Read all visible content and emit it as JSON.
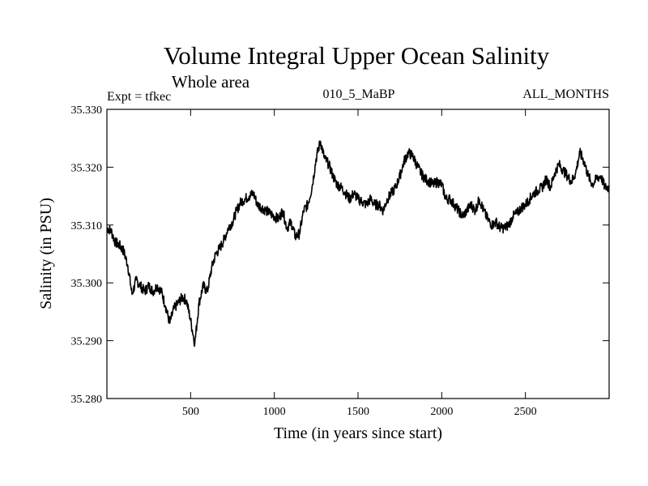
{
  "chart_data": {
    "type": "line",
    "title": "Volume Integral Upper Ocean Salinity",
    "subtitle": "Whole area",
    "header_left": "Expt = tfkec",
    "header_center": "010_5_MaBP",
    "header_right": "ALL_MONTHS",
    "xlabel": "Time (in years since start)",
    "ylabel": "Salinity (in PSU)",
    "xlim": [
      0,
      3000
    ],
    "ylim": [
      35.28,
      35.33
    ],
    "x_ticks": [
      500,
      1000,
      1500,
      2000,
      2500
    ],
    "x_tick_labels": [
      "500",
      "1000",
      "1500",
      "2000",
      "2500"
    ],
    "y_ticks": [
      35.28,
      35.29,
      35.3,
      35.31,
      35.32,
      35.33
    ],
    "y_tick_labels": [
      "35.280",
      "35.290",
      "35.300",
      "35.310",
      "35.320",
      "35.330"
    ],
    "grid": false,
    "line_color": "#000000",
    "series": [
      {
        "x": [
          0,
          25,
          50,
          75,
          100,
          125,
          150,
          175,
          200,
          225,
          250,
          275,
          300,
          325,
          350,
          375,
          400,
          425,
          450,
          475,
          500,
          525,
          550,
          575,
          600,
          625,
          650,
          675,
          700,
          725,
          750,
          775,
          800,
          825,
          850,
          875,
          900,
          925,
          950,
          975,
          1000,
          1025,
          1050,
          1075,
          1100,
          1125,
          1150,
          1175,
          1200,
          1225,
          1250,
          1275,
          1300,
          1325,
          1350,
          1375,
          1400,
          1425,
          1450,
          1475,
          1500,
          1525,
          1550,
          1575,
          1600,
          1625,
          1650,
          1675,
          1700,
          1725,
          1750,
          1775,
          1800,
          1825,
          1850,
          1875,
          1900,
          1925,
          1950,
          1975,
          2000,
          2025,
          2050,
          2075,
          2100,
          2125,
          2150,
          2175,
          2200,
          2225,
          2250,
          2275,
          2300,
          2325,
          2350,
          2375,
          2400,
          2425,
          2450,
          2475,
          2500,
          2525,
          2550,
          2575,
          2600,
          2625,
          2650,
          2675,
          2700,
          2725,
          2750,
          2775,
          2800,
          2825,
          2850,
          2875,
          2900,
          2925,
          2950,
          2975,
          3000
        ],
        "values": [
          35.3095,
          35.309,
          35.307,
          35.3065,
          35.3055,
          35.303,
          35.298,
          35.3005,
          35.2995,
          35.2985,
          35.2995,
          35.2985,
          35.2995,
          35.2985,
          35.296,
          35.293,
          35.2955,
          35.2965,
          35.2975,
          35.297,
          35.2935,
          35.2895,
          35.2965,
          35.2995,
          35.2985,
          35.3025,
          35.305,
          35.306,
          35.3075,
          35.3095,
          35.3105,
          35.3125,
          35.314,
          35.3145,
          35.315,
          35.3155,
          35.3135,
          35.313,
          35.3125,
          35.312,
          35.3115,
          35.311,
          35.3125,
          35.3095,
          35.3105,
          35.308,
          35.3085,
          35.3125,
          35.3135,
          35.3165,
          35.3215,
          35.3245,
          35.3215,
          35.3205,
          35.3185,
          35.317,
          35.3165,
          35.3155,
          35.3145,
          35.3155,
          35.3145,
          35.314,
          35.3135,
          35.3145,
          35.3135,
          35.3135,
          35.3125,
          35.3145,
          35.3155,
          35.3165,
          35.3185,
          35.321,
          35.3225,
          35.322,
          35.3205,
          35.319,
          35.318,
          35.3175,
          35.317,
          35.3175,
          35.317,
          35.3145,
          35.3145,
          35.3135,
          35.3125,
          35.3115,
          35.3125,
          35.3135,
          35.3125,
          35.3145,
          35.3125,
          35.311,
          35.31,
          35.3105,
          35.3095,
          35.3095,
          35.31,
          35.3115,
          35.312,
          35.313,
          35.3135,
          35.3145,
          35.3155,
          35.316,
          35.3165,
          35.318,
          35.3165,
          35.319,
          35.3205,
          35.3195,
          35.3185,
          35.3175,
          35.319,
          35.3225,
          35.321,
          35.3185,
          35.317,
          35.318,
          35.3185,
          35.3165,
          35.3165
        ]
      }
    ]
  }
}
